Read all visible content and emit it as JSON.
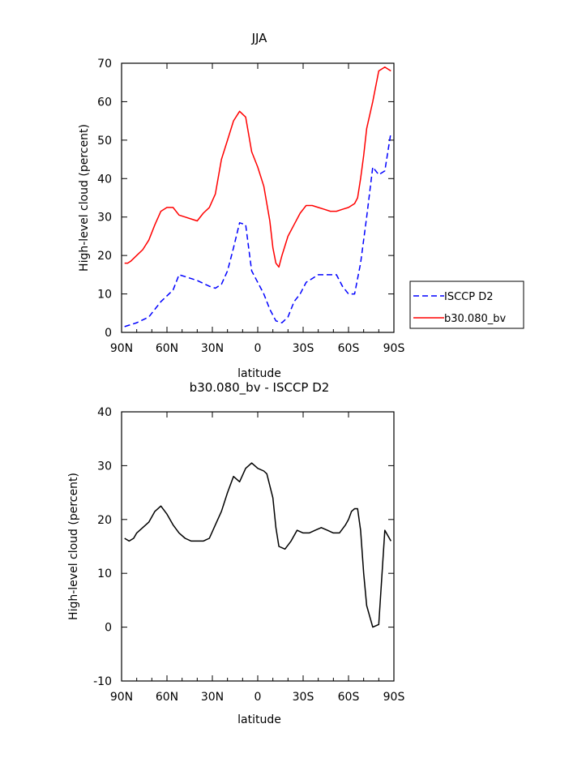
{
  "chart_data": [
    {
      "type": "line",
      "title": "JJA",
      "xlabel": "latitude",
      "ylabel": "High-level cloud (percent)",
      "xlim": [
        90,
        -90
      ],
      "ylim": [
        0,
        70
      ],
      "x_tick_labels": [
        "90N",
        "60N",
        "30N",
        "0",
        "30S",
        "60S",
        "90S"
      ],
      "y_tick_labels": [
        "0",
        "10",
        "20",
        "30",
        "40",
        "50",
        "60",
        "70"
      ],
      "legend": "right",
      "series": [
        {
          "name": "ISCCP D2",
          "color": "#0000ff",
          "dash": "dashed",
          "x": [
            88,
            80,
            72,
            64,
            56,
            52,
            48,
            40,
            32,
            28,
            24,
            20,
            16,
            12,
            8,
            6,
            4,
            0,
            -4,
            -8,
            -12,
            -16,
            -20,
            -24,
            -28,
            -32,
            -36,
            -40,
            -44,
            -48,
            -52,
            -56,
            -60,
            -64,
            -68,
            -72,
            -76,
            -80,
            -84,
            -88
          ],
          "y": [
            1.5,
            2.5,
            4,
            8,
            11,
            15,
            14.5,
            13.5,
            12,
            11.5,
            12.5,
            16,
            22,
            28.5,
            28,
            22,
            16,
            13,
            10,
            6,
            3,
            2.5,
            4,
            8,
            10,
            13,
            14,
            15,
            15,
            15,
            15,
            12,
            10,
            10,
            18,
            30,
            43,
            41,
            42,
            52
          ]
        },
        {
          "name": "b30.080_bv",
          "color": "#ff0000",
          "dash": "solid",
          "x": [
            88,
            86,
            84,
            80,
            76,
            72,
            68,
            64,
            60,
            56,
            52,
            48,
            44,
            40,
            36,
            32,
            28,
            24,
            20,
            16,
            12,
            8,
            4,
            0,
            -4,
            -8,
            -10,
            -12,
            -14,
            -16,
            -20,
            -24,
            -28,
            -32,
            -36,
            -40,
            -44,
            -48,
            -52,
            -56,
            -60,
            -64,
            -66,
            -68,
            -70,
            -72,
            -76,
            -80,
            -84,
            -88
          ],
          "y": [
            18,
            18,
            18.5,
            20,
            21.5,
            24,
            28,
            31.5,
            32.5,
            32.5,
            30.5,
            30,
            29.5,
            29,
            31,
            32.5,
            36,
            45,
            50,
            55,
            57.5,
            56,
            47,
            43,
            38,
            29,
            22,
            18,
            17,
            20,
            25,
            28,
            31,
            33,
            33,
            32.5,
            32,
            31.5,
            31.5,
            32,
            32.5,
            33.5,
            35,
            40,
            46,
            53,
            60,
            68,
            69,
            68
          ]
        }
      ]
    },
    {
      "type": "line",
      "title": "b30.080_bv - ISCCP D2",
      "xlabel": "latitude",
      "ylabel": "High-level cloud (percent)",
      "xlim": [
        90,
        -90
      ],
      "ylim": [
        -10,
        40
      ],
      "x_tick_labels": [
        "90N",
        "60N",
        "30N",
        "0",
        "30S",
        "60S",
        "90S"
      ],
      "y_tick_labels": [
        "-10",
        "0",
        "10",
        "20",
        "30",
        "40"
      ],
      "series": [
        {
          "color": "#000000",
          "dash": "solid",
          "x": [
            88,
            85,
            82,
            80,
            76,
            72,
            68,
            64,
            60,
            56,
            52,
            48,
            44,
            40,
            36,
            32,
            28,
            24,
            20,
            16,
            12,
            8,
            6,
            4,
            0,
            -4,
            -6,
            -10,
            -12,
            -14,
            -18,
            -22,
            -26,
            -30,
            -34,
            -38,
            -42,
            -46,
            -50,
            -54,
            -58,
            -60,
            -62,
            -64,
            -66,
            -68,
            -70,
            -72,
            -76,
            -80,
            -84,
            -88
          ],
          "y": [
            16.5,
            16,
            16.5,
            17.5,
            18.5,
            19.5,
            21.5,
            22.5,
            21,
            19,
            17.5,
            16.5,
            16,
            16,
            16,
            16.5,
            19,
            21.5,
            25,
            28,
            27,
            29.5,
            30,
            30.5,
            29.5,
            29,
            28.5,
            24,
            18.5,
            15,
            14.5,
            16,
            18,
            17.5,
            17.5,
            18,
            18.5,
            18,
            17.5,
            17.5,
            19,
            20,
            21.5,
            22,
            22,
            18,
            10,
            4,
            0,
            0.5,
            18,
            16
          ]
        }
      ]
    }
  ]
}
